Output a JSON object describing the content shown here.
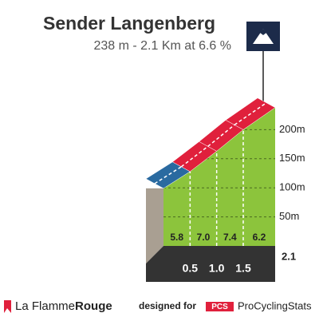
{
  "chart_data": {
    "type": "climb-profile",
    "title": "Sender Langenberg",
    "subtitle": "238 m - 2.1 Km at 6.6 %",
    "x": [
      0,
      0.5,
      1,
      1.5,
      2.1
    ],
    "elevation": [
      99,
      128,
      163,
      200,
      238
    ],
    "xlim": [
      0,
      2.1
    ],
    "ylim": [
      0,
      250
    ],
    "xticks": [
      0.5,
      {
        "value": 1,
        "label": "1.0"
      },
      1.5,
      2.1
    ],
    "yticks": [
      {
        "value": 50,
        "label": "50m"
      },
      {
        "value": 100,
        "label": "100m"
      },
      {
        "value": 150,
        "label": "150m"
      },
      {
        "value": 200,
        "label": "200m"
      }
    ],
    "gradients": [
      5.8,
      7,
      7.4,
      6.2
    ],
    "value_labels": [
      "5.8",
      "7.0",
      "7.4",
      "6.2"
    ],
    "band_colors": [
      "#2a6aa0",
      "#e0203c",
      "#e0203c",
      "#e0203c"
    ],
    "color": "#8cc43c",
    "grid": true
  },
  "footer": {
    "brand": "La Flamme",
    "brand_bold": "Rouge",
    "designed": "designed for",
    "pcs": "PCS",
    "site": "ProCyclingStats"
  }
}
